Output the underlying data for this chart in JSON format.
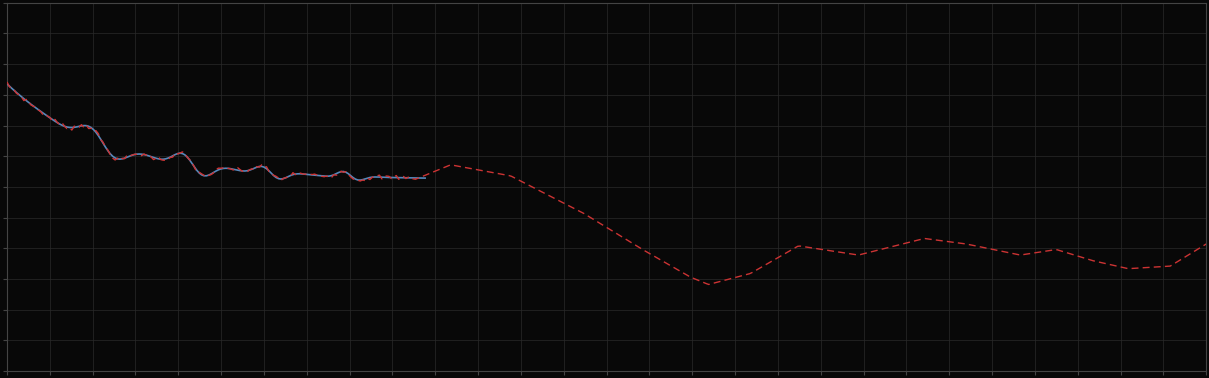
{
  "background_color": "#080808",
  "plot_bg_color": "#080808",
  "grid_color": "#2a2a2a",
  "spine_color": "#444444",
  "tick_color": "#444444",
  "blue_line_color": "#5588bb",
  "red_line_color": "#cc3333",
  "figsize": [
    12.09,
    3.78
  ],
  "dpi": 100,
  "n_points": 500,
  "n_gridx": 28,
  "n_gridy": 12,
  "ylim_low": 0.0,
  "ylim_high": 1.0
}
